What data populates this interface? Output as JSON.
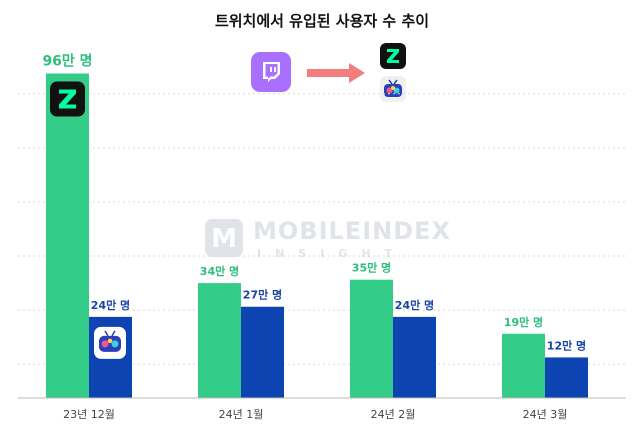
{
  "chart_data": {
    "type": "bar",
    "title": "트위치에서 유입된 사용자 수 추이",
    "categories": [
      "23년 12월",
      "24년 1월",
      "24년 2월",
      "24년 3월"
    ],
    "series": [
      {
        "name": "",
        "color": "#33cc88",
        "values": [
          96,
          34,
          35,
          19
        ],
        "labels": [
          "96만 명",
          "34만 명",
          "35만 명",
          "19만 명"
        ],
        "label_color": "#2fbf7c"
      },
      {
        "name": "",
        "color": "#0d44b2",
        "values": [
          24,
          27,
          24,
          12
        ],
        "labels": [
          "24만 명",
          "27만 명",
          "24만 명",
          "12만 명"
        ],
        "label_color": "#1a45a8"
      }
    ],
    "ylim": [
      0,
      100
    ],
    "grid": true,
    "xlabel": "",
    "ylabel": ""
  },
  "icons": {
    "twitch": "twitch-icon",
    "chzzk": "chzzk-icon",
    "afreecatv": "afreecatv-icon",
    "arrow": "arrow-right-icon"
  },
  "colors": {
    "twitch": "#9146ff",
    "chzzk_bg": "#111111",
    "chzzk_z": "#00ffa3",
    "arrow": "#f27d7d",
    "grid": "#d9d9d9",
    "axis": "#bbbbbb"
  },
  "watermark": {
    "brand": "MOBILEINDEX",
    "sub": "INSIGHT",
    "mark": "M"
  }
}
